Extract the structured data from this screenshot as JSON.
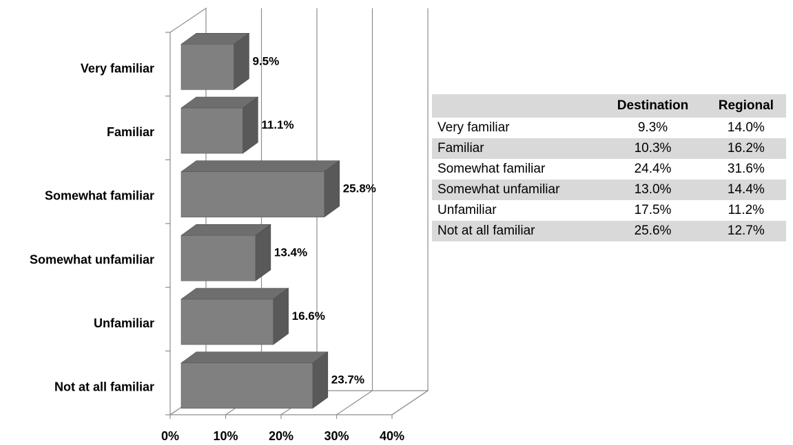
{
  "chart_data": {
    "type": "bar",
    "orientation": "horizontal",
    "style": "3d",
    "categories": [
      "Very familiar",
      "Familiar",
      "Somewhat familiar",
      "Somewhat unfamiliar",
      "Unfamiliar",
      "Not at all familiar"
    ],
    "values": [
      9.5,
      11.1,
      25.8,
      13.4,
      16.6,
      23.7
    ],
    "data_labels": [
      "9.5%",
      "11.1%",
      "25.8%",
      "13.4%",
      "16.6%",
      "23.7%"
    ],
    "xlim": [
      0,
      40
    ],
    "x_ticks": [
      "0%",
      "10%",
      "20%",
      "30%",
      "40%"
    ],
    "grid": true,
    "bar_color": "#808080",
    "bar_top_color": "#6e6e6e",
    "bar_side_color": "#595959"
  },
  "table": {
    "columns": [
      "",
      "Destination",
      "Regional"
    ],
    "rows": [
      {
        "label": "Very familiar",
        "destination": "9.3%",
        "regional": "14.0%",
        "shaded": false
      },
      {
        "label": "Familiar",
        "destination": "10.3%",
        "regional": "16.2%",
        "shaded": true
      },
      {
        "label": "Somewhat familiar",
        "destination": "24.4%",
        "regional": "31.6%",
        "shaded": false
      },
      {
        "label": "Somewhat unfamiliar",
        "destination": "13.0%",
        "regional": "14.4%",
        "shaded": true
      },
      {
        "label": "Unfamiliar",
        "destination": "17.5%",
        "regional": "11.2%",
        "shaded": false
      },
      {
        "label": "Not at all familiar",
        "destination": "25.6%",
        "regional": "12.7%",
        "shaded": true
      }
    ]
  }
}
